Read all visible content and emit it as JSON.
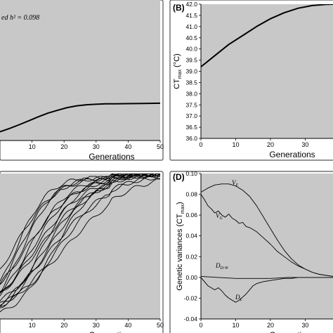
{
  "chart_data": [
    {
      "panel": "A",
      "type": "line",
      "panel_label": "",
      "annotation": "ed h² = 0.098",
      "xlabel": "Generations",
      "ylabel": "",
      "xlim": [
        0,
        50
      ],
      "ylim": [
        35.8,
        42.2
      ],
      "x_ticks": [
        10,
        20,
        30,
        40,
        50
      ],
      "y_ticks": [],
      "background": "#c8c8c8",
      "series": [
        {
          "x": [
            0,
            3,
            6,
            9,
            12,
            15,
            18,
            21,
            24,
            27,
            30,
            33,
            36,
            40,
            45,
            50
          ],
          "y": [
            36.2,
            36.35,
            36.52,
            36.7,
            36.88,
            37.05,
            37.18,
            37.3,
            37.38,
            37.43,
            37.45,
            37.47,
            37.47,
            37.48,
            37.49,
            37.5
          ]
        }
      ]
    },
    {
      "panel": "B",
      "type": "line",
      "panel_label": "(B)",
      "xlabel": "Generations",
      "ylabel": "CT_max (°C)",
      "ylabel_main": "CT",
      "ylabel_sub": "max",
      "ylabel_tail": " (°C)",
      "xlim": [
        0,
        38
      ],
      "ylim": [
        36.0,
        42.0
      ],
      "x_ticks": [
        0,
        10,
        20,
        30
      ],
      "y_ticks": [
        "36.0",
        "36.5",
        "37.0",
        "37.5",
        "38.0",
        "38.5",
        "39.0",
        "39.5",
        "40.0",
        "40.5",
        "41.0",
        "41.5",
        "42.0"
      ],
      "background": "#c8c8c8",
      "series": [
        {
          "x": [
            0,
            4,
            8,
            12,
            16,
            20,
            24,
            28,
            32,
            36,
            38
          ],
          "y": [
            39.2,
            39.7,
            40.2,
            40.6,
            41.0,
            41.35,
            41.62,
            41.82,
            41.94,
            41.99,
            42.0
          ]
        }
      ]
    },
    {
      "panel": "C",
      "type": "line",
      "panel_label": "",
      "xlabel": "Generations",
      "xlim": [
        0,
        50
      ],
      "ylim": [
        0,
        1
      ],
      "x_ticks": [
        10,
        20,
        30,
        40,
        50
      ],
      "background": "#c8c8c8",
      "series": [
        {
          "k": 0.13,
          "h": 8
        },
        {
          "k": 0.15,
          "h": 10
        },
        {
          "k": 0.12,
          "h": 12
        },
        {
          "k": 0.18,
          "h": 6
        },
        {
          "k": 0.14,
          "h": 14
        },
        {
          "k": 0.16,
          "h": 9
        },
        {
          "k": 0.11,
          "h": 16
        },
        {
          "k": 0.2,
          "h": 5
        },
        {
          "k": 0.13,
          "h": 11
        },
        {
          "k": 0.17,
          "h": 13
        },
        {
          "k": 0.12,
          "h": 18
        },
        {
          "k": 0.19,
          "h": 7
        },
        {
          "k": 0.14,
          "h": 15
        },
        {
          "k": 0.16,
          "h": 17
        },
        {
          "k": 0.1,
          "h": 20
        },
        {
          "k": 0.15,
          "h": 4
        }
      ]
    },
    {
      "panel": "D",
      "type": "line",
      "panel_label": "(D)",
      "xlabel": "Generations",
      "ylabel": "Genetic variances (CT_max)",
      "ylabel_main": "Genetic variances (CT",
      "ylabel_sub": "max",
      "ylabel_tail": ")",
      "xlim": [
        0,
        38
      ],
      "ylim": [
        -0.04,
        0.1
      ],
      "x_ticks": [
        0,
        10,
        20,
        30
      ],
      "y_ticks": [
        "-0.04",
        "-0.02",
        "0.00",
        "0.02",
        "0.04",
        "0.06",
        "0.08",
        "0.10"
      ],
      "background": "#c8c8c8",
      "series": [
        {
          "name": "V",
          "sub": "E",
          "x": [
            0,
            2,
            4,
            6,
            8,
            10,
            12,
            14,
            16,
            18,
            20,
            22,
            24,
            26,
            28,
            30,
            32,
            34,
            36,
            38
          ],
          "y": [
            0.082,
            0.086,
            0.089,
            0.09,
            0.09,
            0.088,
            0.084,
            0.078,
            0.069,
            0.058,
            0.047,
            0.036,
            0.026,
            0.018,
            0.012,
            0.008,
            0.005,
            0.003,
            0.002,
            0.001
          ]
        },
        {
          "name": "V",
          "sub": "G",
          "x": [
            0,
            1,
            2,
            3,
            4,
            5,
            6,
            7,
            8,
            9,
            10,
            11,
            12,
            13,
            14,
            16,
            18,
            20,
            22,
            24,
            26,
            28,
            30,
            32,
            34,
            36,
            38
          ],
          "y": [
            0.08,
            0.075,
            0.069,
            0.066,
            0.062,
            0.064,
            0.06,
            0.058,
            0.061,
            0.057,
            0.055,
            0.052,
            0.053,
            0.049,
            0.048,
            0.044,
            0.038,
            0.032,
            0.025,
            0.02,
            0.015,
            0.011,
            0.008,
            0.005,
            0.003,
            0.002,
            0.001
          ]
        },
        {
          "name": "D",
          "sub": "D-W",
          "x": [
            0,
            5,
            10,
            15,
            20,
            25,
            30,
            35,
            38
          ],
          "y": [
            0.001,
            0.0,
            -0.001,
            -0.001,
            -0.001,
            0.0,
            0.0,
            0.0,
            0.0
          ]
        },
        {
          "name": "D",
          "sub": "L",
          "x": [
            0,
            1,
            2,
            3,
            4,
            5,
            6,
            7,
            8,
            9,
            10,
            11,
            12,
            13,
            14,
            15,
            16,
            18,
            20,
            22,
            24,
            26,
            28,
            30,
            34,
            38
          ],
          "y": [
            0.0,
            -0.004,
            -0.008,
            -0.01,
            -0.012,
            -0.01,
            -0.013,
            -0.017,
            -0.02,
            -0.022,
            -0.024,
            -0.022,
            -0.019,
            -0.016,
            -0.012,
            -0.008,
            -0.006,
            -0.004,
            -0.003,
            -0.002,
            -0.001,
            -0.001,
            0.0,
            0.0,
            0.0,
            0.0
          ]
        }
      ]
    }
  ]
}
